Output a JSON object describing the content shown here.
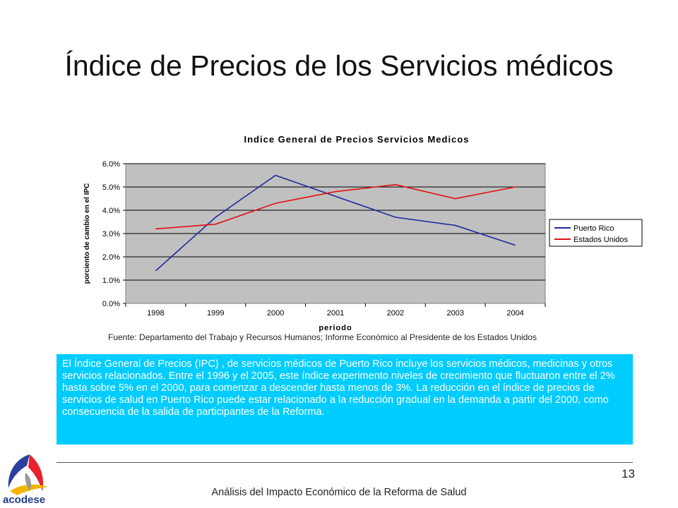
{
  "slide": {
    "title": "Índice de Precios de los Servicios médicos",
    "source": "Fuente: Departamento del Trabajo y Recursos Humanos; Informe Económico al Presidente de los Estados Unidos",
    "description": "El Índice General de Precios (IPC) , de servicios médicos de Puerto Rico incluye los servicios médicos, medicinas y otros servicios relacionados. Entre el 1996 y el 2005, este índice experimento niveles de crecimiento que fluctuaron entre el 2% hasta sobre 5% en el 2000, para comenzar a descender hasta menos de 3%. La reducción en el índice de precios de servicios de salud en Puerto Rico puede estar relacionado a la reducción gradual en la demanda a partir del 2000, como consecuencia de la salida de participantes de la Reforma.",
    "page_number": "13",
    "footer": "Análisis del Impacto Económico de la Reforma de Salud",
    "logo_text": "acodese"
  },
  "colors": {
    "plot_background": "#c0c0c0",
    "puerto_rico": "#1f2a9c",
    "estados_unidos": "#e01010",
    "textbox_background": "#00ccff"
  },
  "chart_data": {
    "type": "line",
    "title": "Indice General de Precios Servicios Medicos",
    "xlabel": "periodo",
    "ylabel": "porciento de cambio en el IPC",
    "categories": [
      "1998",
      "1999",
      "2000",
      "2001",
      "2002",
      "2003",
      "2004"
    ],
    "y_ticks": [
      "0.0%",
      "1.0%",
      "2.0%",
      "3.0%",
      "4.0%",
      "5.0%",
      "6.0%"
    ],
    "ylim": [
      0,
      6
    ],
    "grid": true,
    "legend_position": "right",
    "series": [
      {
        "name": "Puerto Rico",
        "color": "#1f2a9c",
        "values": [
          1.4,
          3.7,
          5.5,
          4.6,
          3.7,
          3.35,
          2.5
        ]
      },
      {
        "name": "Estados Unidos",
        "color": "#e01010",
        "values": [
          3.2,
          3.4,
          4.3,
          4.8,
          5.1,
          4.5,
          5.0
        ]
      }
    ]
  }
}
